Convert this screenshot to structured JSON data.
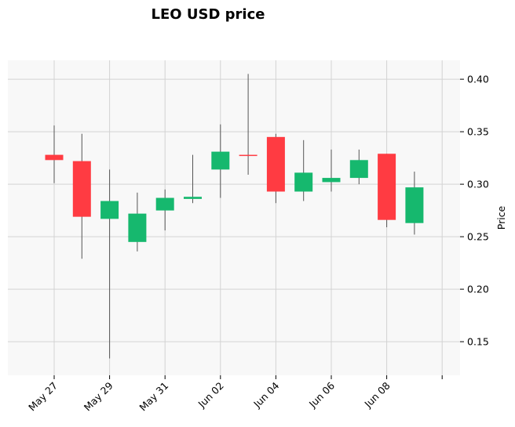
{
  "chart_data": {
    "type": "candlestick",
    "title": "LEO USD price",
    "ylabel": "Price",
    "xlabel": "",
    "ylim": [
      0.118,
      0.418
    ],
    "y_ticks": [
      0.15,
      0.2,
      0.25,
      0.3,
      0.35,
      0.4
    ],
    "y_tick_labels": [
      "0.15",
      "0.20",
      "0.25",
      "0.30",
      "0.35",
      "0.40"
    ],
    "x_tick_labels": [
      "May 27",
      "May 29",
      "May 31",
      "Jun 02",
      "Jun 04",
      "Jun 06",
      "Jun 08",
      ""
    ],
    "x_tick_indices": [
      0,
      2,
      4,
      6,
      8,
      10,
      12,
      14
    ],
    "grid": true,
    "colors": {
      "up": "#16b86e",
      "down": "#ff3b42",
      "wick": "#555555",
      "background": "#f8f8f8",
      "grid": "#d3d3d3"
    },
    "candles": [
      {
        "date": "May 27",
        "open": 0.328,
        "high": 0.356,
        "low": 0.301,
        "close": 0.323
      },
      {
        "date": "May 28",
        "open": 0.322,
        "high": 0.348,
        "low": 0.229,
        "close": 0.269
      },
      {
        "date": "May 29",
        "open": 0.267,
        "high": 0.314,
        "low": 0.134,
        "close": 0.284
      },
      {
        "date": "May 30",
        "open": 0.245,
        "high": 0.292,
        "low": 0.236,
        "close": 0.272
      },
      {
        "date": "May 31",
        "open": 0.275,
        "high": 0.295,
        "low": 0.256,
        "close": 0.287
      },
      {
        "date": "Jun 01",
        "open": 0.286,
        "high": 0.328,
        "low": 0.282,
        "close": 0.288
      },
      {
        "date": "Jun 02",
        "open": 0.314,
        "high": 0.357,
        "low": 0.287,
        "close": 0.331
      },
      {
        "date": "Jun 03",
        "open": 0.328,
        "high": 0.405,
        "low": 0.309,
        "close": 0.327
      },
      {
        "date": "Jun 04",
        "open": 0.345,
        "high": 0.348,
        "low": 0.282,
        "close": 0.293
      },
      {
        "date": "Jun 05",
        "open": 0.293,
        "high": 0.342,
        "low": 0.284,
        "close": 0.311
      },
      {
        "date": "Jun 06",
        "open": 0.302,
        "high": 0.333,
        "low": 0.293,
        "close": 0.306
      },
      {
        "date": "Jun 07",
        "open": 0.306,
        "high": 0.333,
        "low": 0.3,
        "close": 0.323
      },
      {
        "date": "Jun 08",
        "open": 0.329,
        "high": 0.329,
        "low": 0.259,
        "close": 0.266
      },
      {
        "date": "Jun 09",
        "open": 0.263,
        "high": 0.312,
        "low": 0.252,
        "close": 0.297
      }
    ]
  }
}
